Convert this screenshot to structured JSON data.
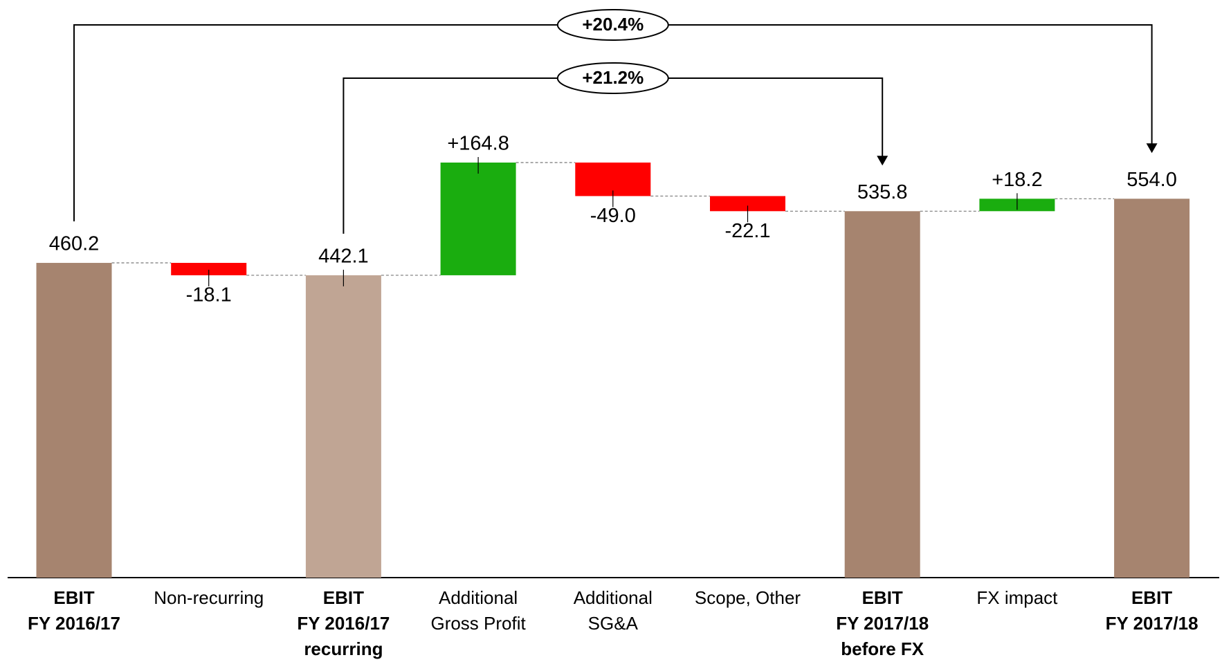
{
  "chart_data": {
    "type": "waterfall",
    "categories": [
      [
        "EBIT",
        "FY 2016/17"
      ],
      [
        "Non-recurring"
      ],
      [
        "EBIT",
        "FY 2016/17",
        "recurring"
      ],
      [
        "Additional",
        "Gross Profit"
      ],
      [
        "Additional",
        "SG&A"
      ],
      [
        "Scope, Other"
      ],
      [
        "EBIT",
        "FY 2017/18",
        "before FX"
      ],
      [
        "FX impact"
      ],
      [
        "EBIT",
        "FY 2017/18"
      ]
    ],
    "measures": [
      "absolute",
      "relative",
      "absolute",
      "relative",
      "relative",
      "relative",
      "absolute",
      "relative",
      "absolute"
    ],
    "values": [
      460.2,
      -18.1,
      442.1,
      164.8,
      -49.0,
      -22.1,
      535.8,
      18.2,
      554.0
    ],
    "value_labels": [
      "460.2",
      "-18.1",
      "442.1",
      "+164.8",
      "-49.0",
      "-22.1",
      "535.8",
      "+18.2",
      "554.0"
    ],
    "colors": [
      "#a6846f",
      "#ff0000",
      "#c0a594",
      "#1aad0f",
      "#ff0000",
      "#ff0000",
      "#a6846f",
      "#1aad0f",
      "#a6846f"
    ],
    "annotations": [
      "+20.4%",
      "+21.2%"
    ]
  }
}
